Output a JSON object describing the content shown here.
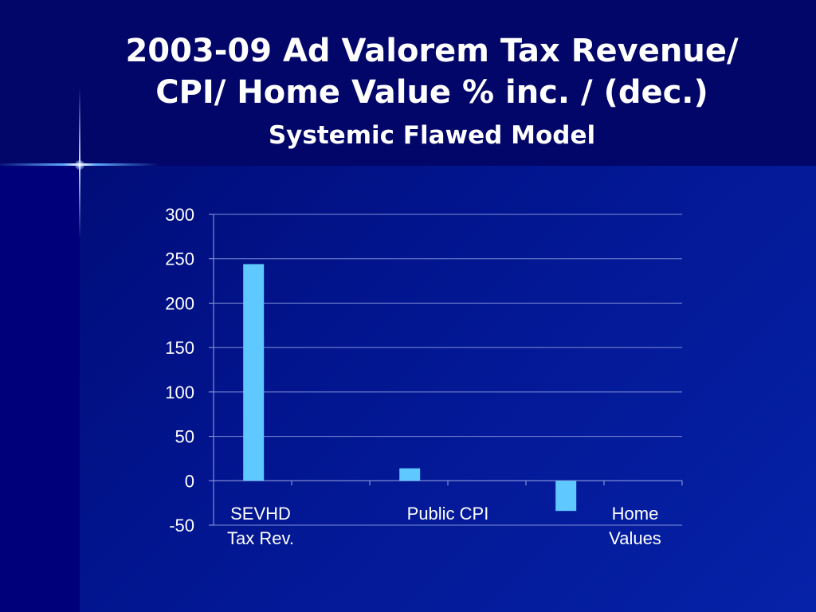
{
  "slide": {
    "title_line1": "2003-09 Ad Valorem Tax Revenue/",
    "title_line2": "CPI/ Home Value % inc. / (dec.)",
    "subtitle": "Systemic Flawed Model"
  },
  "colors": {
    "bar": "#5fc8ff",
    "gridline": "#7f8fd6",
    "axis": "#9aa6e0",
    "text": "#ffffff"
  },
  "chart_data": {
    "type": "bar",
    "title": "",
    "xlabel": "",
    "ylabel": "",
    "categories": [
      [
        "SEVHD",
        "Tax Rev."
      ],
      [
        "Public CPI"
      ],
      [
        "Home",
        "Values"
      ]
    ],
    "values": [
      244,
      14,
      -34
    ],
    "ylim": [
      -50,
      300
    ],
    "yticks": [
      300,
      250,
      200,
      150,
      100,
      50,
      0,
      -50
    ],
    "grid": true,
    "legend": "none"
  }
}
